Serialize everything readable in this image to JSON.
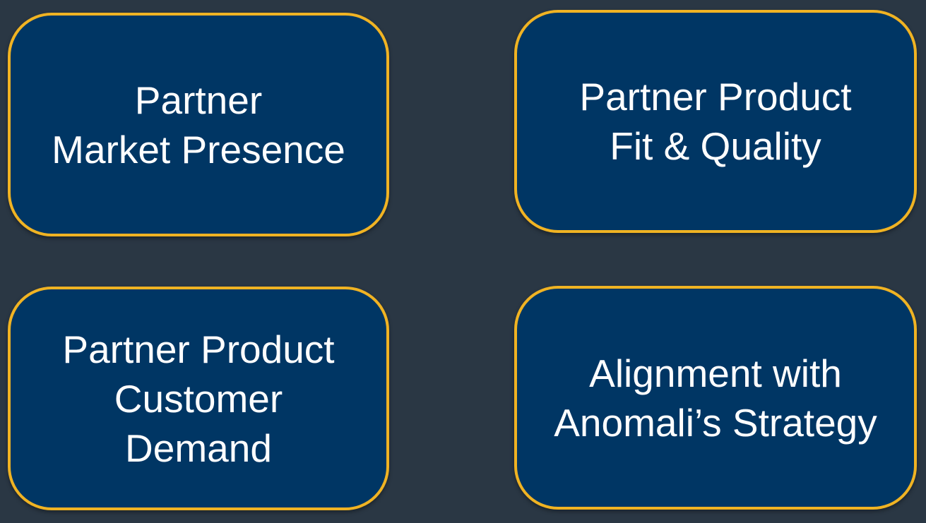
{
  "colors": {
    "background": "#2a3744",
    "card_fill": "#003664",
    "card_border": "#f0b323",
    "text": "#ffffff"
  },
  "cards": [
    {
      "text": "Partner\nMarket Presence"
    },
    {
      "text": "Partner Product\nFit & Quality"
    },
    {
      "text": "Partner Product\nCustomer\nDemand"
    },
    {
      "text": "Alignment with\nAnomali’s Strategy"
    }
  ]
}
